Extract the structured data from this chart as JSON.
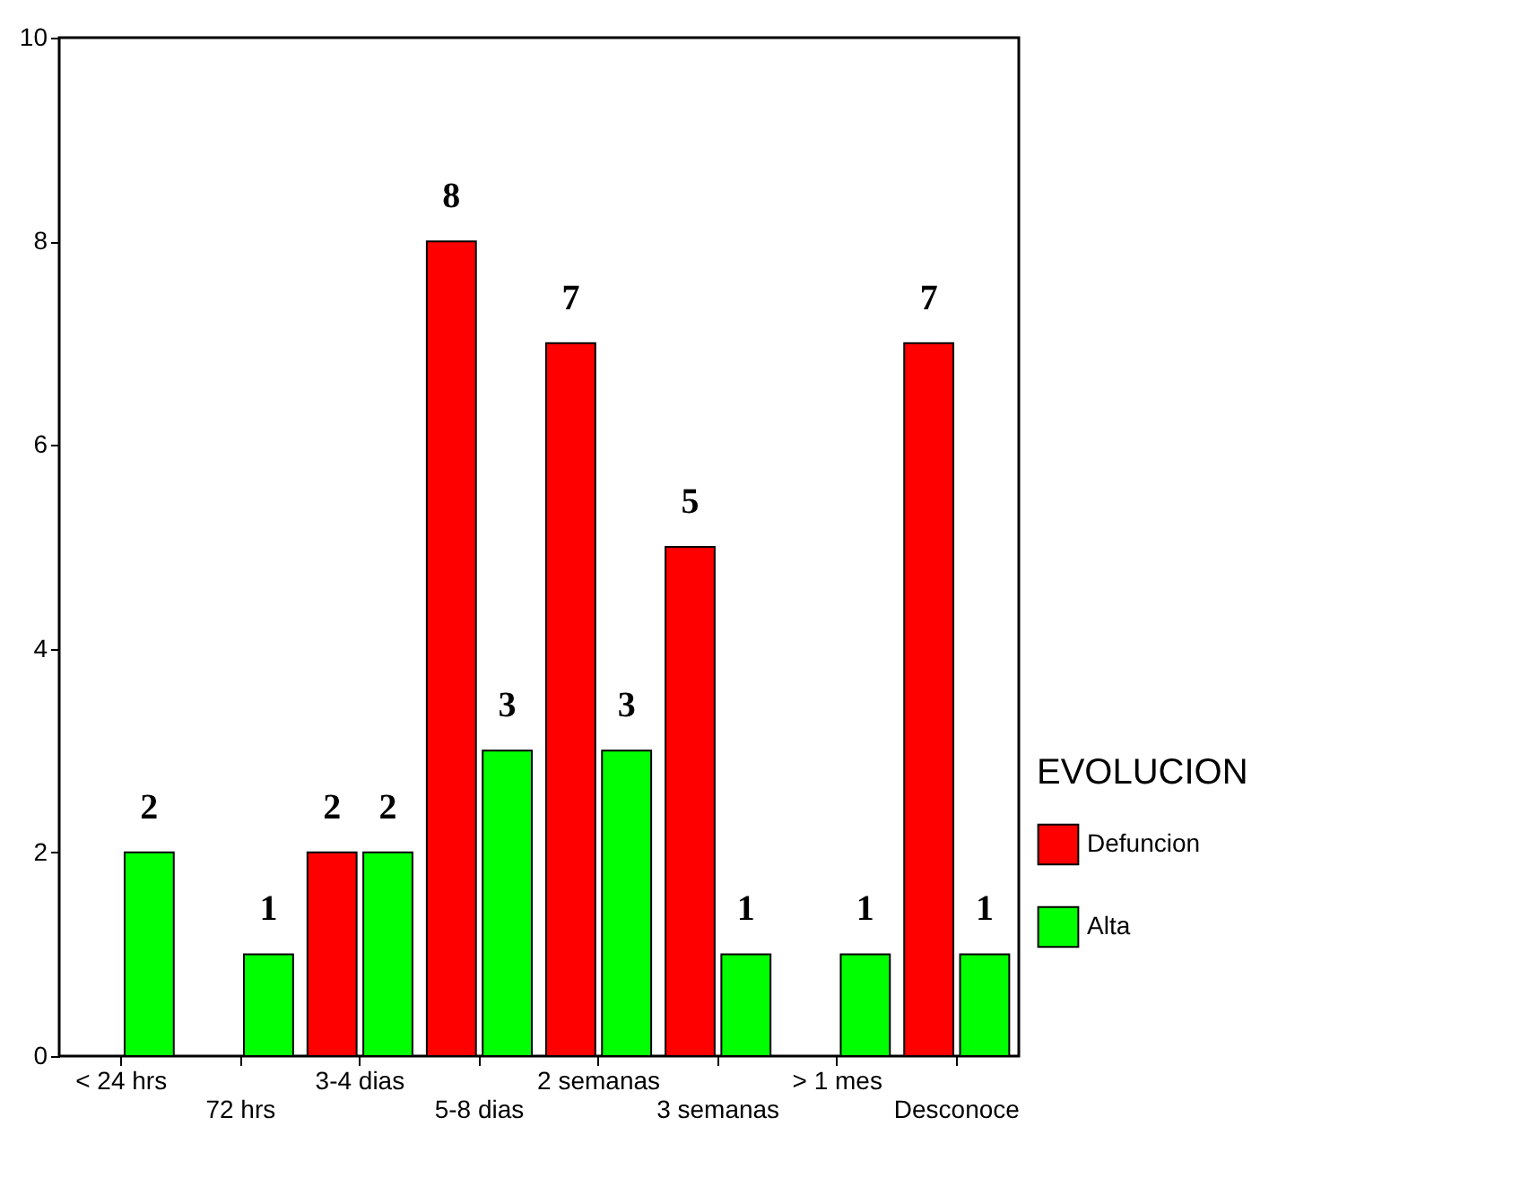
{
  "chart_data": {
    "type": "bar",
    "categories": [
      "< 24 hrs",
      "72 hrs",
      "3-4 dias",
      "5-8 dias",
      "2 semanas",
      "3 semanas",
      "> 1 mes",
      "Desconoce"
    ],
    "series": [
      {
        "name": "Defuncion",
        "color": "#ff0000",
        "values": [
          null,
          null,
          2,
          8,
          7,
          5,
          null,
          7
        ]
      },
      {
        "name": "Alta",
        "color": "#00ff00",
        "values": [
          2,
          1,
          2,
          3,
          3,
          1,
          1,
          1
        ]
      }
    ],
    "ylim": [
      0,
      10
    ],
    "yticks": [
      0,
      2,
      4,
      6,
      8,
      10
    ],
    "grid": false,
    "legend": "right",
    "legend_title": "EVOLUCION",
    "data_labels": true
  }
}
